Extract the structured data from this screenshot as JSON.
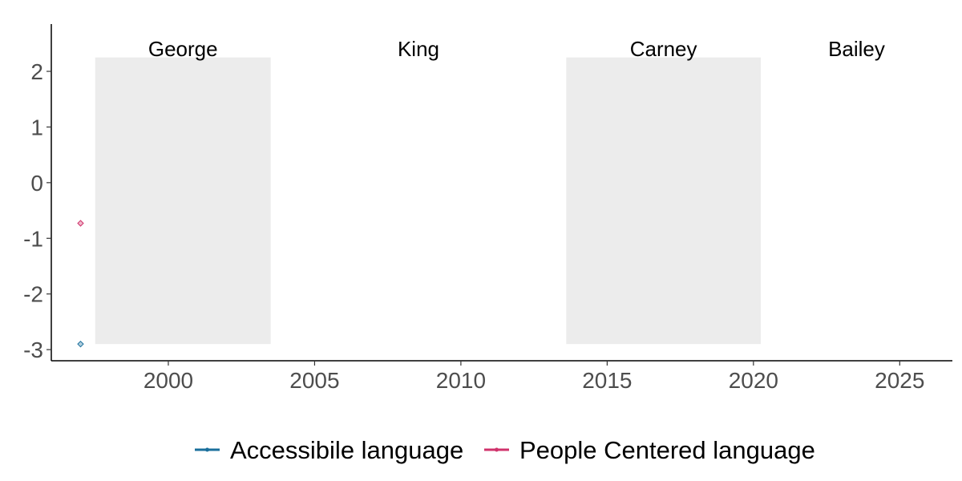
{
  "chart_data": {
    "type": "scatter",
    "xlim": [
      1996.0,
      2026.8
    ],
    "ylim": [
      -3.2,
      2.85
    ],
    "x_ticks": [
      2000,
      2005,
      2010,
      2015,
      2020,
      2025
    ],
    "x_tick_labels": [
      "2000",
      "2005",
      "2010",
      "2015",
      "2020",
      "2025"
    ],
    "y_ticks": [
      2,
      1,
      0,
      -1,
      -2,
      -3
    ],
    "y_tick_labels": [
      "2",
      "1",
      "0",
      "-1",
      "-2",
      "-3"
    ],
    "grid": false,
    "legend_position": "bottom",
    "band_ymin": -2.9,
    "band_ymax": 2.25,
    "label_y": 2.4,
    "bands": [
      {
        "label": "George",
        "start": 1997.5,
        "end": 2003.5,
        "shaded": true
      },
      {
        "label": "King",
        "start": 2003.5,
        "end": 2013.6,
        "shaded": false
      },
      {
        "label": "Carney",
        "start": 2013.6,
        "end": 2020.25,
        "shaded": true
      },
      {
        "label": "Bailey",
        "start": 2020.25,
        "end": 2026.8,
        "shaded": false
      }
    ],
    "series": [
      {
        "name": "Accessibile language",
        "color": "#1a6f9c",
        "x": [
          1997.0
        ],
        "y": [
          -2.9
        ]
      },
      {
        "name": "People Centered language",
        "color": "#d0336b",
        "x": [
          1997.0
        ],
        "y": [
          -0.73
        ]
      }
    ]
  }
}
